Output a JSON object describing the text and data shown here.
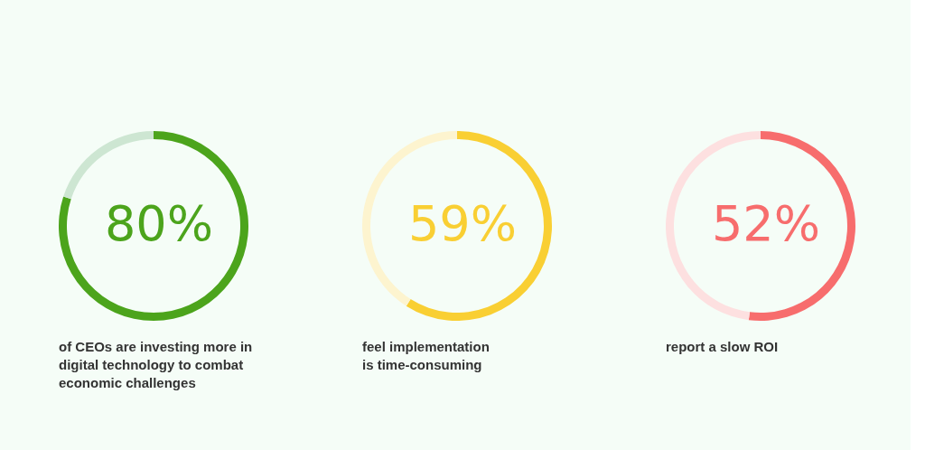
{
  "chart_data": [
    {
      "type": "donut",
      "categories": [
        null,
        null
      ],
      "values": [
        80,
        20
      ],
      "colors": [
        "#4ca41c",
        "#cde6d2"
      ],
      "value_labels": [
        "80%",
        null
      ],
      "annotations": [
        "of CEOs are investing more in\ndigital technology to combat\neconomic challenges"
      ]
    },
    {
      "type": "donut",
      "categories": [
        null,
        null
      ],
      "values": [
        59,
        41
      ],
      "colors": [
        "#f9cf33",
        "#fdf4cf"
      ],
      "value_labels": [
        "59%",
        null
      ],
      "annotations": [
        "feel implementation\nis time-consuming"
      ]
    },
    {
      "type": "donut",
      "categories": [
        null,
        null
      ],
      "values": [
        52,
        48
      ],
      "colors": [
        "#f76d6d",
        "#fde0e0"
      ],
      "value_labels": [
        "52%",
        null
      ],
      "annotations": [
        "report a slow ROI"
      ]
    }
  ]
}
